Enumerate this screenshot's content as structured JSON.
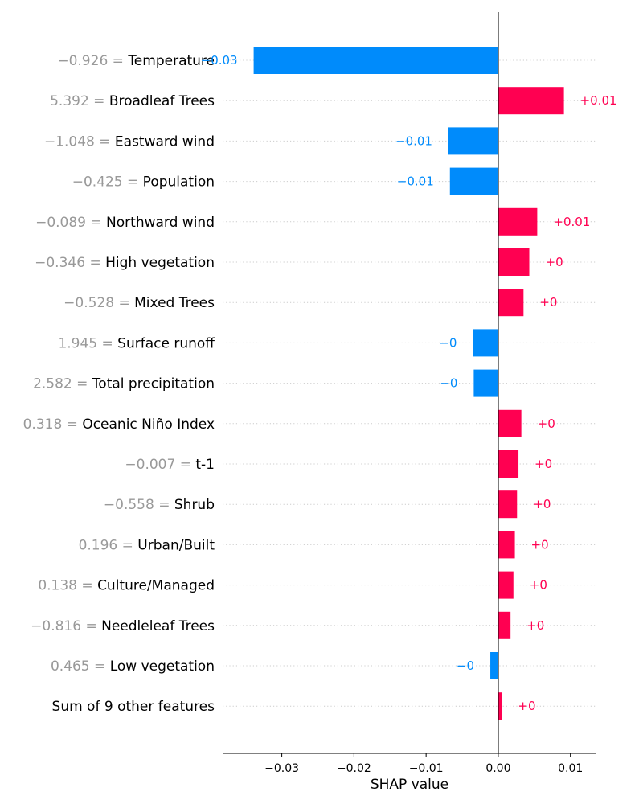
{
  "chart_data": {
    "type": "bar",
    "orientation": "horizontal",
    "xlabel": "SHAP value",
    "xlim": [
      -0.0382,
      0.0136
    ],
    "xticks": [
      -0.03,
      -0.02,
      -0.01,
      0.0,
      0.01
    ],
    "xtick_labels": [
      "−0.03",
      "−0.02",
      "−0.01",
      "0.00",
      "0.01"
    ],
    "grid": "dotted horizontal lines per row",
    "colors": {
      "positive": "#ff0051",
      "negative": "#008bfb",
      "feature_value": "#999999",
      "feature_name": "#000000"
    },
    "rows": [
      {
        "feature_value": "−0.926 = ",
        "feature": "Temperature",
        "value": -0.0339,
        "label": "−0.03"
      },
      {
        "feature_value": "5.392 = ",
        "feature": "Broadleaf Trees",
        "value": 0.0091,
        "label": "+0.01"
      },
      {
        "feature_value": "−1.048 = ",
        "feature": "Eastward wind",
        "value": -0.0069,
        "label": "−0.01"
      },
      {
        "feature_value": "−0.425 = ",
        "feature": "Population",
        "value": -0.0067,
        "label": "−0.01"
      },
      {
        "feature_value": "−0.089 = ",
        "feature": "Northward wind",
        "value": 0.0054,
        "label": "+0.01"
      },
      {
        "feature_value": "−0.346 = ",
        "feature": "High vegetation",
        "value": 0.0043,
        "label": "+0"
      },
      {
        "feature_value": "−0.528 = ",
        "feature": "Mixed Trees",
        "value": 0.0035,
        "label": "+0"
      },
      {
        "feature_value": "1.945 = ",
        "feature": "Surface runoff",
        "value": -0.0035,
        "label": "−0"
      },
      {
        "feature_value": "2.582 = ",
        "feature": "Total precipitation",
        "value": -0.0034,
        "label": "−0"
      },
      {
        "feature_value": "0.318 = ",
        "feature": "Oceanic Niño Index",
        "value": 0.0032,
        "label": "+0"
      },
      {
        "feature_value": "−0.007 = ",
        "feature": "t-1",
        "value": 0.0028,
        "label": "+0"
      },
      {
        "feature_value": "−0.558 = ",
        "feature": "Shrub",
        "value": 0.0026,
        "label": "+0"
      },
      {
        "feature_value": "0.196 = ",
        "feature": "Urban/Built",
        "value": 0.0023,
        "label": "+0"
      },
      {
        "feature_value": "0.138 = ",
        "feature": "Culture/Managed",
        "value": 0.0021,
        "label": "+0"
      },
      {
        "feature_value": "−0.816 = ",
        "feature": "Needleleaf Trees",
        "value": 0.0017,
        "label": "+0"
      },
      {
        "feature_value": "0.465 = ",
        "feature": "Low vegetation",
        "value": -0.0011,
        "label": "−0"
      },
      {
        "feature_value": "",
        "feature": "Sum of 9 other features",
        "value": 0.0005,
        "label": "+0"
      }
    ]
  }
}
